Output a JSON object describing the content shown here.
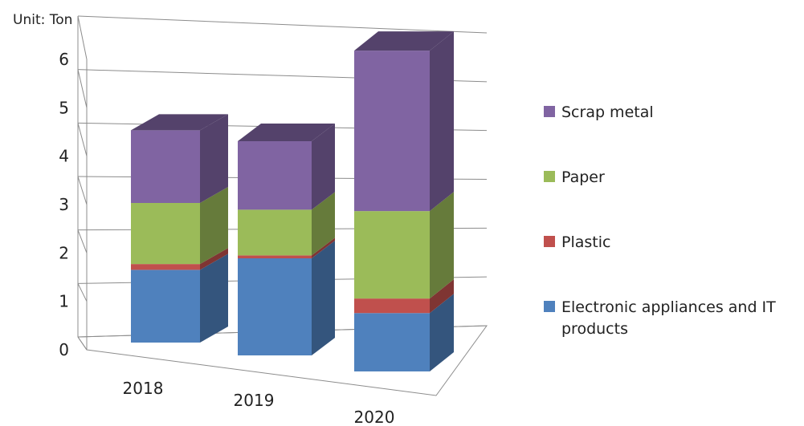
{
  "chart_data": {
    "type": "bar",
    "stacked": true,
    "three_d": true,
    "unit_label": "Unit: Ton",
    "categories": [
      "2018",
      "2019",
      "2020"
    ],
    "series": [
      {
        "name": "Electronic appliances and IT products",
        "values": [
          1.25,
          1.7,
          1.0
        ],
        "color": "#4f81bd"
      },
      {
        "name": "Plastic",
        "values": [
          0.1,
          0.05,
          0.25
        ],
        "color": "#c0504d"
      },
      {
        "name": "Paper",
        "values": [
          1.05,
          0.8,
          1.5
        ],
        "color": "#9bbb59"
      },
      {
        "name": "Scrap metal",
        "values": [
          1.25,
          1.2,
          2.75
        ],
        "color": "#8064a2"
      }
    ],
    "ylim": [
      0,
      6
    ],
    "yticks": [
      "0",
      "1",
      "2",
      "3",
      "4",
      "5",
      "6"
    ],
    "grid": true,
    "legend_position": "right"
  }
}
